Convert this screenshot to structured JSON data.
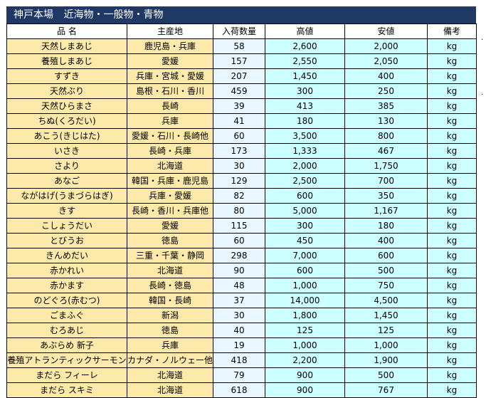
{
  "title": {
    "market": "神戸本場",
    "category": "近海物・一般物・青物"
  },
  "headers": [
    "品 名",
    "主産地",
    "入荷数量",
    "高値",
    "安値",
    "備考"
  ],
  "rows": [
    {
      "name": "天然しまあじ",
      "origin": "鹿児島・兵庫",
      "qty": "58",
      "high": "2,600",
      "low": "2,000",
      "unit": "kg"
    },
    {
      "name": "養殖しまあじ",
      "origin": "愛媛",
      "qty": "157",
      "high": "2,550",
      "low": "2,050",
      "unit": "kg"
    },
    {
      "name": "すずき",
      "origin": "兵庫・宮城・愛媛",
      "qty": "207",
      "high": "1,450",
      "low": "400",
      "unit": "kg"
    },
    {
      "name": "天然ぶり",
      "origin": "島根・石川・香川",
      "qty": "459",
      "high": "300",
      "low": "250",
      "unit": "kg"
    },
    {
      "name": "天然ひらまさ",
      "origin": "長崎",
      "qty": "39",
      "high": "413",
      "low": "385",
      "unit": "kg"
    },
    {
      "name": "ちぬ(くろだい)",
      "origin": "兵庫",
      "qty": "41",
      "high": "180",
      "low": "130",
      "unit": "kg"
    },
    {
      "name": "あこう(きじはた)",
      "origin": "愛媛・石川・長崎他",
      "qty": "60",
      "high": "3,500",
      "low": "800",
      "unit": "kg"
    },
    {
      "name": "いさき",
      "origin": "長崎・兵庫",
      "qty": "173",
      "high": "1,333",
      "low": "467",
      "unit": "kg"
    },
    {
      "name": "さより",
      "origin": "北海道",
      "qty": "30",
      "high": "2,000",
      "low": "1,750",
      "unit": "kg"
    },
    {
      "name": "あなご",
      "origin": "韓国・兵庫・鹿児島",
      "qty": "129",
      "high": "2,500",
      "low": "700",
      "unit": "kg"
    },
    {
      "name": "ながはげ(うまづらはぎ)",
      "origin": "兵庫・愛媛",
      "qty": "82",
      "high": "600",
      "low": "350",
      "unit": "kg"
    },
    {
      "name": "きす",
      "origin": "長崎・香川・兵庫他",
      "qty": "80",
      "high": "5,000",
      "low": "1,167",
      "unit": "kg"
    },
    {
      "name": "こしょうだい",
      "origin": "愛媛",
      "qty": "115",
      "high": "300",
      "low": "180",
      "unit": "kg"
    },
    {
      "name": "とびうお",
      "origin": "徳島",
      "qty": "60",
      "high": "450",
      "low": "400",
      "unit": "kg"
    },
    {
      "name": "きんめだい",
      "origin": "三重・千葉・静岡",
      "qty": "298",
      "high": "7,000",
      "low": "600",
      "unit": "kg"
    },
    {
      "name": "赤かれい",
      "origin": "北海道",
      "qty": "90",
      "high": "600",
      "low": "500",
      "unit": "kg"
    },
    {
      "name": "赤かます",
      "origin": "長崎・徳島",
      "qty": "48",
      "high": "1,000",
      "low": "750",
      "unit": "kg"
    },
    {
      "name": "のどぐろ(赤むつ)",
      "origin": "韓国・長崎",
      "qty": "37",
      "high": "14,000",
      "low": "4,500",
      "unit": "kg"
    },
    {
      "name": "ごまふぐ",
      "origin": "新潟",
      "qty": "30",
      "high": "1,800",
      "low": "1,450",
      "unit": "kg"
    },
    {
      "name": "むろあじ",
      "origin": "徳島",
      "qty": "40",
      "high": "125",
      "low": "125",
      "unit": "kg"
    },
    {
      "name": "あぶらめ 新子",
      "origin": "兵庫",
      "qty": "19",
      "high": "1,000",
      "low": "1,000",
      "unit": "kg"
    },
    {
      "name": "養殖アトランティックサーモン",
      "origin": "カナダ・ノルウェー他",
      "qty": "418",
      "high": "2,200",
      "low": "1,900",
      "unit": "kg"
    },
    {
      "name": "まだら フィーレ",
      "origin": "北海道",
      "qty": "79",
      "high": "900",
      "low": "500",
      "unit": "kg"
    },
    {
      "name": "まだら スキミ",
      "origin": "北海道",
      "qty": "618",
      "high": "900",
      "low": "767",
      "unit": "kg"
    }
  ]
}
